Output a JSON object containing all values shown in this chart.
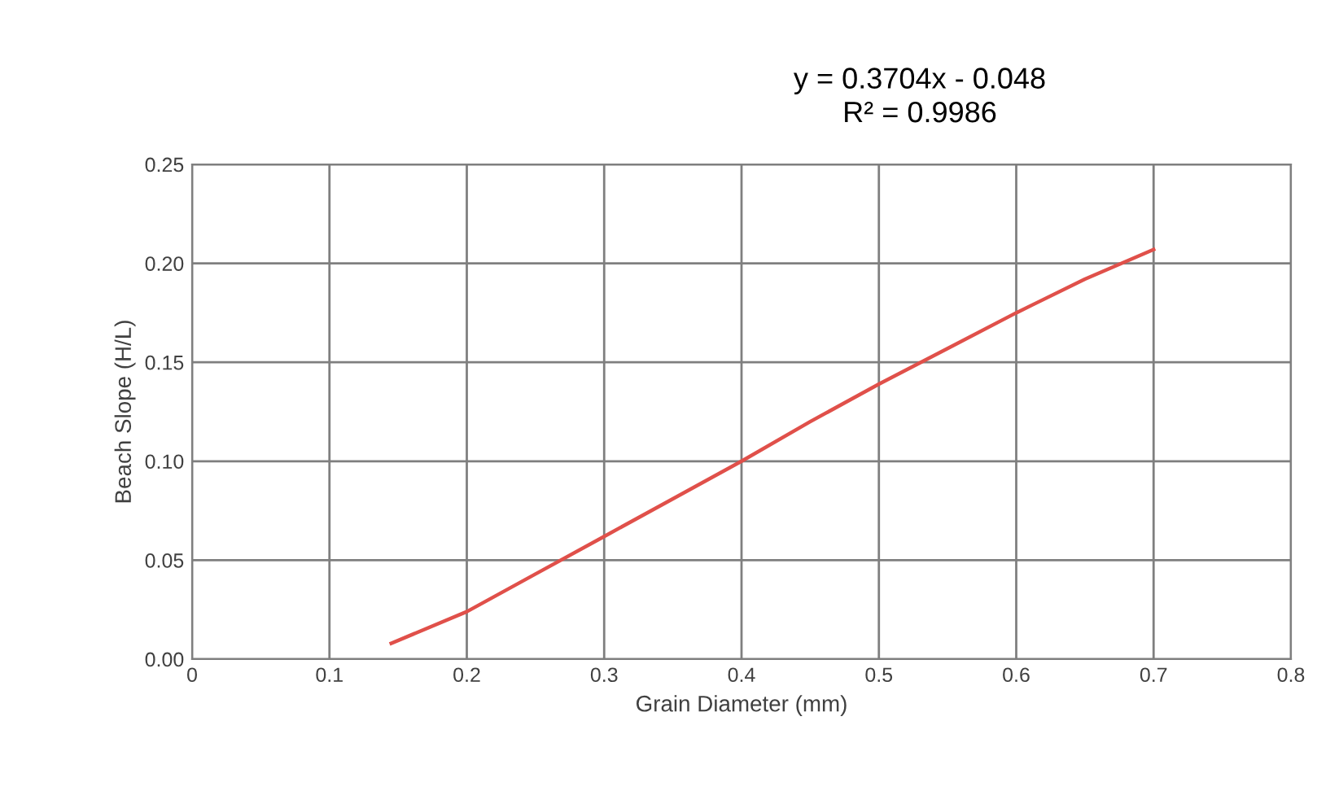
{
  "chart_data": {
    "type": "line",
    "xlabel": "Grain Diameter (mm)",
    "ylabel": "Beach Slope (H/L)",
    "annotations": [
      "y = 0.3704x - 0.048",
      "R² = 0.9986"
    ],
    "series": [
      {
        "color": "#e0504a",
        "x": [
          0.145,
          0.2,
          0.25,
          0.3,
          0.35,
          0.4,
          0.45,
          0.5,
          0.55,
          0.6,
          0.65,
          0.7
        ],
        "values": [
          0.008,
          0.024,
          0.043,
          0.062,
          0.081,
          0.1,
          0.12,
          0.139,
          0.157,
          0.175,
          0.192,
          0.207
        ]
      }
    ],
    "xlim": [
      0,
      0.8
    ],
    "ylim": [
      0,
      0.25
    ],
    "xticks": [
      0,
      0.1,
      0.2,
      0.3,
      0.4,
      0.5,
      0.6,
      0.7,
      0.8
    ],
    "yticks": [
      {
        "value": 0,
        "label": "0.00"
      },
      {
        "value": 0.05,
        "label": "0.05"
      },
      {
        "value": 0.1,
        "label": "0.10"
      },
      {
        "value": 0.15,
        "label": "0.15"
      },
      {
        "value": 0.2,
        "label": "0.20"
      },
      {
        "value": 0.25,
        "label": "0.25"
      }
    ],
    "grid": true,
    "marker": "none",
    "line_style": "solid"
  }
}
